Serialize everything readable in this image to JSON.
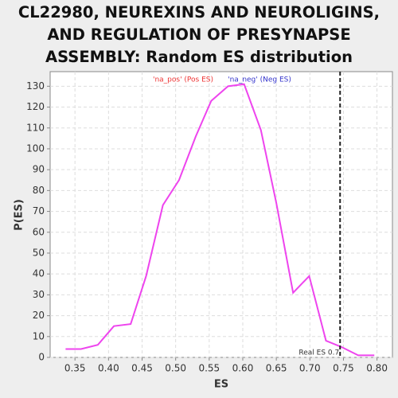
{
  "chart_data": {
    "type": "line",
    "title": "CL22980, NEUREXINS AND NEUROLIGINS, AND REGULATION OF PRESYNAPSE ASSEMBLY: Random ES distribution",
    "xlabel": "ES",
    "ylabel": "P(ES)",
    "x": [
      0.336,
      0.359,
      0.384,
      0.408,
      0.433,
      0.456,
      0.481,
      0.505,
      0.53,
      0.553,
      0.578,
      0.602,
      0.627,
      0.65,
      0.675,
      0.699,
      0.724,
      0.747,
      0.772,
      0.796
    ],
    "series": [
      {
        "color": "#ee44ee",
        "values": [
          4,
          4,
          6,
          15,
          16,
          39,
          73,
          85,
          106,
          123,
          130,
          131,
          109,
          74,
          31,
          39,
          8,
          5,
          1,
          1
        ]
      }
    ],
    "xlim": [
      0.313,
      0.823
    ],
    "ylim": [
      0,
      137
    ],
    "xticks": [
      0.35,
      {
        "value": 0.4,
        "label": "0.40"
      },
      0.45,
      {
        "value": 0.5,
        "label": "0.50"
      },
      0.55,
      {
        "value": 0.6,
        "label": "0.60"
      },
      0.65,
      {
        "value": 0.7,
        "label": "0.70"
      },
      0.75,
      {
        "value": 0.8,
        "label": "0.80"
      }
    ],
    "yticks": [
      0,
      10,
      20,
      30,
      40,
      50,
      60,
      70,
      80,
      90,
      100,
      110,
      120,
      130
    ],
    "grid": true,
    "legend": [
      {
        "name": "'na_pos' (Pos ES)",
        "color": "#ee3333"
      },
      {
        "name": "'na_neg' (Neg ES)",
        "color": "#3333cc"
      }
    ],
    "threshold": {
      "value": 0.745,
      "label": "Real ES 0.7",
      "color": "#222222"
    }
  }
}
